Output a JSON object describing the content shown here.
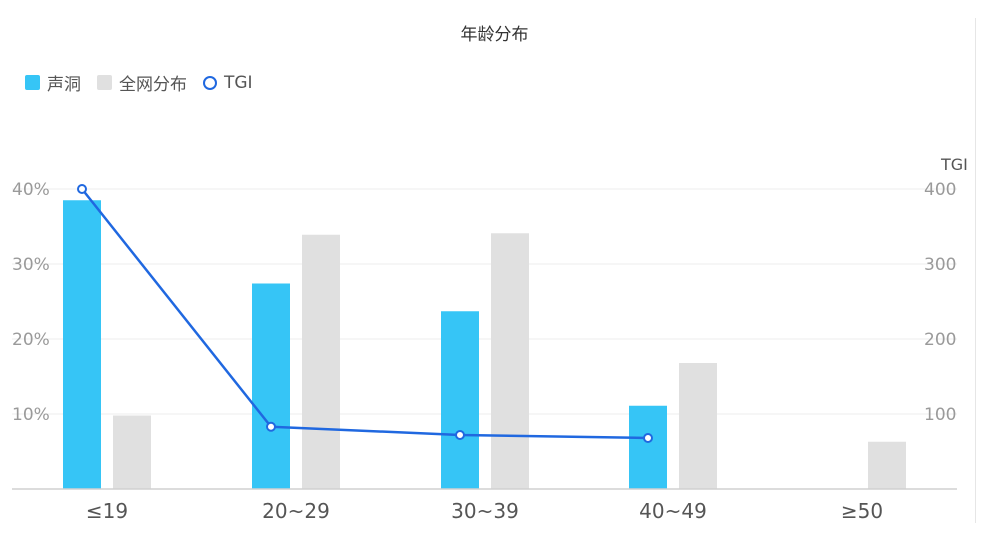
{
  "title": "年龄分布",
  "legend": [
    {
      "label": "声洞",
      "kind": "square",
      "color": "#36c5f6"
    },
    {
      "label": "全网分布",
      "kind": "square",
      "color": "#e0e0e0"
    },
    {
      "label": "TGI",
      "kind": "circle",
      "color": "#2068e0"
    }
  ],
  "chart_data": {
    "type": "bar",
    "categories": [
      "≤19",
      "20~29",
      "30~39",
      "40~49",
      "≥50"
    ],
    "series": [
      {
        "name": "声洞",
        "type": "bar",
        "axis": "left",
        "color": "#36c5f6",
        "values": [
          38.5,
          27.4,
          23.7,
          11.1,
          null
        ]
      },
      {
        "name": "全网分布",
        "type": "bar",
        "axis": "left",
        "color": "#e0e0e0",
        "values": [
          9.8,
          33.9,
          34.1,
          16.8,
          6.3
        ]
      },
      {
        "name": "TGI",
        "type": "line",
        "axis": "right",
        "color": "#2068e0",
        "values": [
          400,
          83,
          72,
          68,
          null
        ]
      }
    ],
    "y_left": {
      "ticks": [
        "10%",
        "20%",
        "30%",
        "40%"
      ],
      "tick_values": [
        10,
        20,
        30,
        40
      ],
      "range": [
        0,
        40
      ]
    },
    "y_right": {
      "label": "TGI",
      "ticks": [
        "100",
        "200",
        "300",
        "400"
      ],
      "tick_values": [
        100,
        200,
        300,
        400
      ],
      "range": [
        0,
        400
      ]
    },
    "grid": true,
    "legend_position": "top-left"
  }
}
